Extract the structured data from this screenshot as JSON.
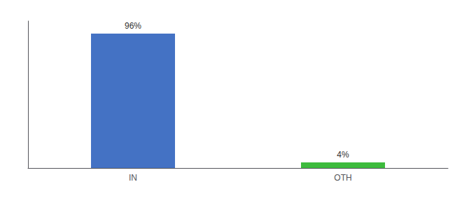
{
  "chart_data": {
    "type": "bar",
    "categories": [
      "IN",
      "OTH"
    ],
    "values": [
      96,
      4
    ],
    "value_labels": [
      "96%",
      "4%"
    ],
    "colors": [
      "#4472c4",
      "#3dbb3d"
    ],
    "ylim": [
      0,
      105
    ],
    "data_labels": true,
    "tick_labels": "x",
    "grid": false
  }
}
